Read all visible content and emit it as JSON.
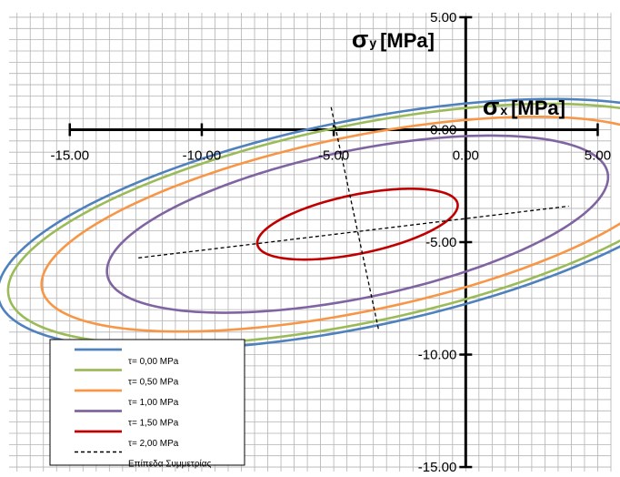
{
  "chart_data": {
    "type": "line",
    "xlabel": {
      "symbol": "σ",
      "sub": "x",
      "unit": "[MPa]"
    },
    "ylabel": {
      "symbol": "σ",
      "sub": "y",
      "unit": "[MPa]"
    },
    "xlim": [
      -17.3,
      5.5
    ],
    "ylim": [
      -15.2,
      5.2
    ],
    "x_ticks": [
      -15,
      -10,
      -5,
      0,
      5
    ],
    "y_ticks": [
      5,
      0,
      -5,
      -10,
      -15
    ],
    "x_tick_labels": [
      "-15.00",
      "-10.00",
      "-5.00",
      "0.00",
      "5.00"
    ],
    "y_tick_labels": [
      "5.00",
      "0.00",
      "-5.00",
      "-10.00",
      "-15.00"
    ],
    "grid": true,
    "minor_grid_step": 0.5,
    "legend": {
      "placement": "bottom-left"
    },
    "ellipse_center": [
      -4.1,
      -4.2
    ],
    "major_axis_angle_deg": 14,
    "series": [
      {
        "name": "τ= 0,00 MPa",
        "color": "#4f81bd",
        "semi_major": 14.0,
        "semi_minor": 4.55
      },
      {
        "name": "τ= 0,50 MPa",
        "color": "#9bbb59",
        "semi_major": 13.6,
        "semi_minor": 4.35
      },
      {
        "name": "τ= 1,00 MPa",
        "color": "#f79646",
        "semi_major": 12.3,
        "semi_minor": 3.85
      },
      {
        "name": "τ= 1,50 MPa",
        "color": "#8064a2",
        "semi_major": 9.75,
        "semi_minor": 3.25
      },
      {
        "name": "τ= 2,00 MPa",
        "color": "#c00000",
        "semi_major": 3.9,
        "semi_minor": 1.3
      }
    ],
    "symmetry_lines": {
      "name": "Επίπεδα Συμμετρίας",
      "color": "#000000",
      "lines": [
        {
          "x": [
            -12.4,
            3.9
          ],
          "y": [
            -5.7,
            -3.4
          ]
        },
        {
          "x": [
            -5.1,
            -3.3
          ],
          "y": [
            1.0,
            -8.9
          ]
        }
      ]
    }
  }
}
